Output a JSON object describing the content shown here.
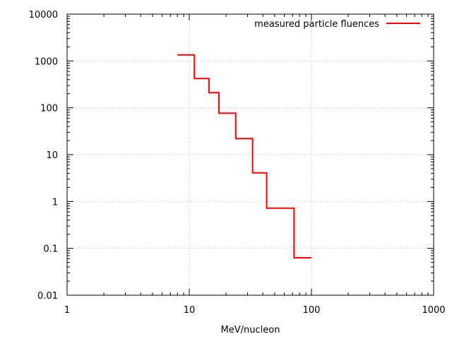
{
  "chart_data": {
    "type": "line",
    "step": true,
    "title": "",
    "xlabel": "MeV/nucleon",
    "ylabel": "",
    "xscale": "log",
    "yscale": "log",
    "xlim": [
      1,
      1000
    ],
    "ylim": [
      0.01,
      10000
    ],
    "x_ticks": [
      {
        "value": 1,
        "label": "1"
      },
      {
        "value": 10,
        "label": "10"
      },
      {
        "value": 100,
        "label": "100"
      },
      {
        "value": 1000,
        "label": "1000"
      }
    ],
    "y_ticks": [
      {
        "value": 0.01,
        "label": "0.01"
      },
      {
        "value": 0.1,
        "label": "0.1"
      },
      {
        "value": 1,
        "label": "1"
      },
      {
        "value": 10,
        "label": "10"
      },
      {
        "value": 100,
        "label": "100"
      },
      {
        "value": 1000,
        "label": "1000"
      },
      {
        "value": 10000,
        "label": "10000"
      }
    ],
    "grid": true,
    "legend_position": "top-right",
    "series": [
      {
        "name": "measured particle fluences",
        "color": "#ff0000",
        "bins": [
          {
            "x0": 8,
            "x1": 11,
            "y": 1350
          },
          {
            "x0": 11,
            "x1": 14.5,
            "y": 420
          },
          {
            "x0": 14.5,
            "x1": 17.5,
            "y": 210
          },
          {
            "x0": 17.5,
            "x1": 24,
            "y": 77
          },
          {
            "x0": 24,
            "x1": 33,
            "y": 22
          },
          {
            "x0": 33,
            "x1": 43,
            "y": 4.1
          },
          {
            "x0": 43,
            "x1": 72,
            "y": 0.72
          },
          {
            "x0": 72,
            "x1": 100,
            "y": 0.063
          }
        ]
      }
    ]
  }
}
